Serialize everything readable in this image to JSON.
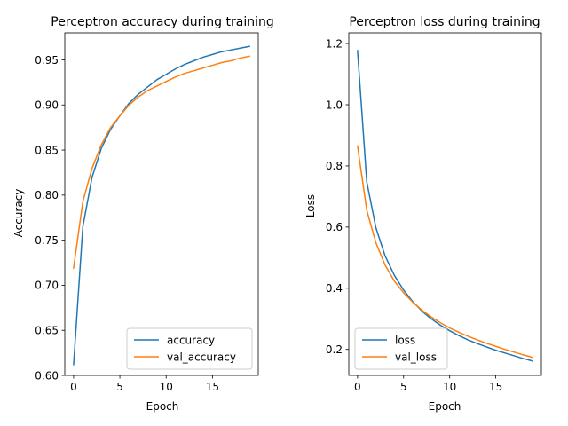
{
  "chart_data": [
    {
      "type": "line",
      "title": "Perceptron accuracy during training",
      "xlabel": "Epoch",
      "ylabel": "Accuracy",
      "xlim": [
        -0.95,
        19.95
      ],
      "ylim": [
        0.6,
        0.98
      ],
      "xticks": [
        0,
        5,
        10,
        15
      ],
      "yticks": [
        0.6,
        0.65,
        0.7,
        0.75,
        0.8,
        0.85,
        0.9,
        0.95
      ],
      "ytick_labels": [
        "0.60",
        "0.65",
        "0.70",
        "0.75",
        "0.80",
        "0.85",
        "0.90",
        "0.95"
      ],
      "grid": false,
      "legend": "lower-right",
      "x": [
        0,
        1,
        2,
        3,
        4,
        5,
        6,
        7,
        8,
        9,
        10,
        11,
        12,
        13,
        14,
        15,
        16,
        17,
        18,
        19
      ],
      "series": [
        {
          "name": "accuracy",
          "color": "#1f77b4",
          "values": [
            0.612,
            0.765,
            0.82,
            0.852,
            0.873,
            0.888,
            0.902,
            0.912,
            0.92,
            0.928,
            0.934,
            0.94,
            0.945,
            0.949,
            0.953,
            0.956,
            0.959,
            0.961,
            0.963,
            0.965
          ]
        },
        {
          "name": "val_accuracy",
          "color": "#ff7f0e",
          "values": [
            0.719,
            0.793,
            0.83,
            0.856,
            0.875,
            0.888,
            0.9,
            0.909,
            0.916,
            0.921,
            0.926,
            0.931,
            0.935,
            0.938,
            0.941,
            0.944,
            0.947,
            0.949,
            0.952,
            0.954
          ]
        }
      ]
    },
    {
      "type": "line",
      "title": "Perceptron loss during training",
      "xlabel": "Epoch",
      "ylabel": "Loss",
      "xlim": [
        -0.95,
        19.95
      ],
      "ylim": [
        0.115,
        1.235
      ],
      "xticks": [
        0,
        5,
        10,
        15
      ],
      "yticks": [
        0.2,
        0.4,
        0.6,
        0.8,
        1.0,
        1.2
      ],
      "ytick_labels": [
        "0.2",
        "0.4",
        "0.6",
        "0.8",
        "1.0",
        "1.2"
      ],
      "grid": false,
      "legend": "lower-left",
      "x": [
        0,
        1,
        2,
        3,
        4,
        5,
        6,
        7,
        8,
        9,
        10,
        11,
        12,
        13,
        14,
        15,
        16,
        17,
        18,
        19
      ],
      "series": [
        {
          "name": "loss",
          "color": "#1f77b4",
          "values": [
            1.177,
            0.748,
            0.597,
            0.505,
            0.442,
            0.394,
            0.356,
            0.325,
            0.3,
            0.279,
            0.261,
            0.245,
            0.231,
            0.219,
            0.208,
            0.197,
            0.188,
            0.179,
            0.17,
            0.162
          ]
        },
        {
          "name": "val_loss",
          "color": "#ff7f0e",
          "values": [
            0.865,
            0.655,
            0.548,
            0.475,
            0.423,
            0.385,
            0.354,
            0.328,
            0.306,
            0.287,
            0.27,
            0.256,
            0.243,
            0.231,
            0.22,
            0.21,
            0.2,
            0.191,
            0.182,
            0.174
          ]
        }
      ]
    }
  ]
}
